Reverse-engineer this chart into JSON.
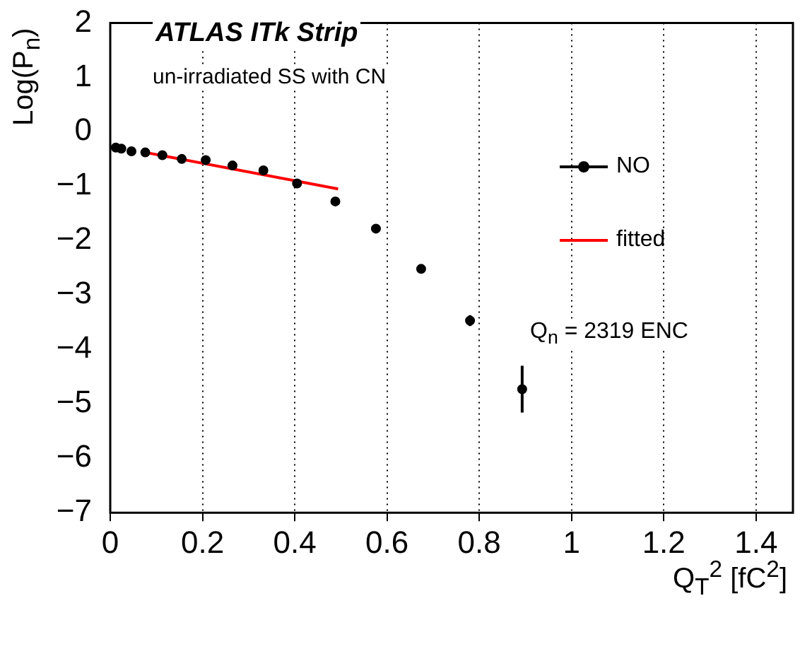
{
  "chart_data": {
    "type": "scatter",
    "xlabel": "Q$_{T}$$^{2}$ [fC$^{2}$]",
    "ylabel": "Log(P$_{n}$)",
    "annotations": [
      "ATLAS ITk Strip",
      "un-irradiated SS with CN",
      "Q$_{n}$ = 2319 ENC"
    ],
    "series": [
      {
        "name": "NO",
        "color": "#000000",
        "x": [
          0.012,
          0.024,
          0.046,
          0.076,
          0.113,
          0.155,
          0.207,
          0.265,
          0.332,
          0.405,
          0.488,
          0.576,
          0.674,
          0.78,
          0.893
        ],
        "values": [
          -0.29,
          -0.31,
          -0.36,
          -0.38,
          -0.43,
          -0.5,
          -0.52,
          -0.62,
          -0.71,
          -0.95,
          -1.28,
          -1.78,
          -2.52,
          -3.47,
          -4.73
        ],
        "errors": [
          null,
          null,
          null,
          null,
          null,
          null,
          null,
          null,
          null,
          null,
          null,
          null,
          null,
          0.1,
          0.43
        ]
      },
      {
        "name": "fitted",
        "type": "line",
        "marker": "none",
        "color": "#ff0000",
        "x": [
          0.076,
          0.494
        ],
        "values": [
          -0.38,
          -1.05
        ]
      }
    ],
    "xlim": [
      0,
      1.48
    ],
    "xticks": [
      0,
      0.2,
      0.4,
      0.6,
      0.8,
      1,
      1.2,
      1.4
    ],
    "ylim": [
      -7,
      2
    ],
    "yticks": [
      -7,
      -6,
      -5,
      -4,
      -3,
      -2,
      -1,
      0,
      1,
      2
    ],
    "grid": "x",
    "legend": "right",
    "marker": "circle"
  }
}
